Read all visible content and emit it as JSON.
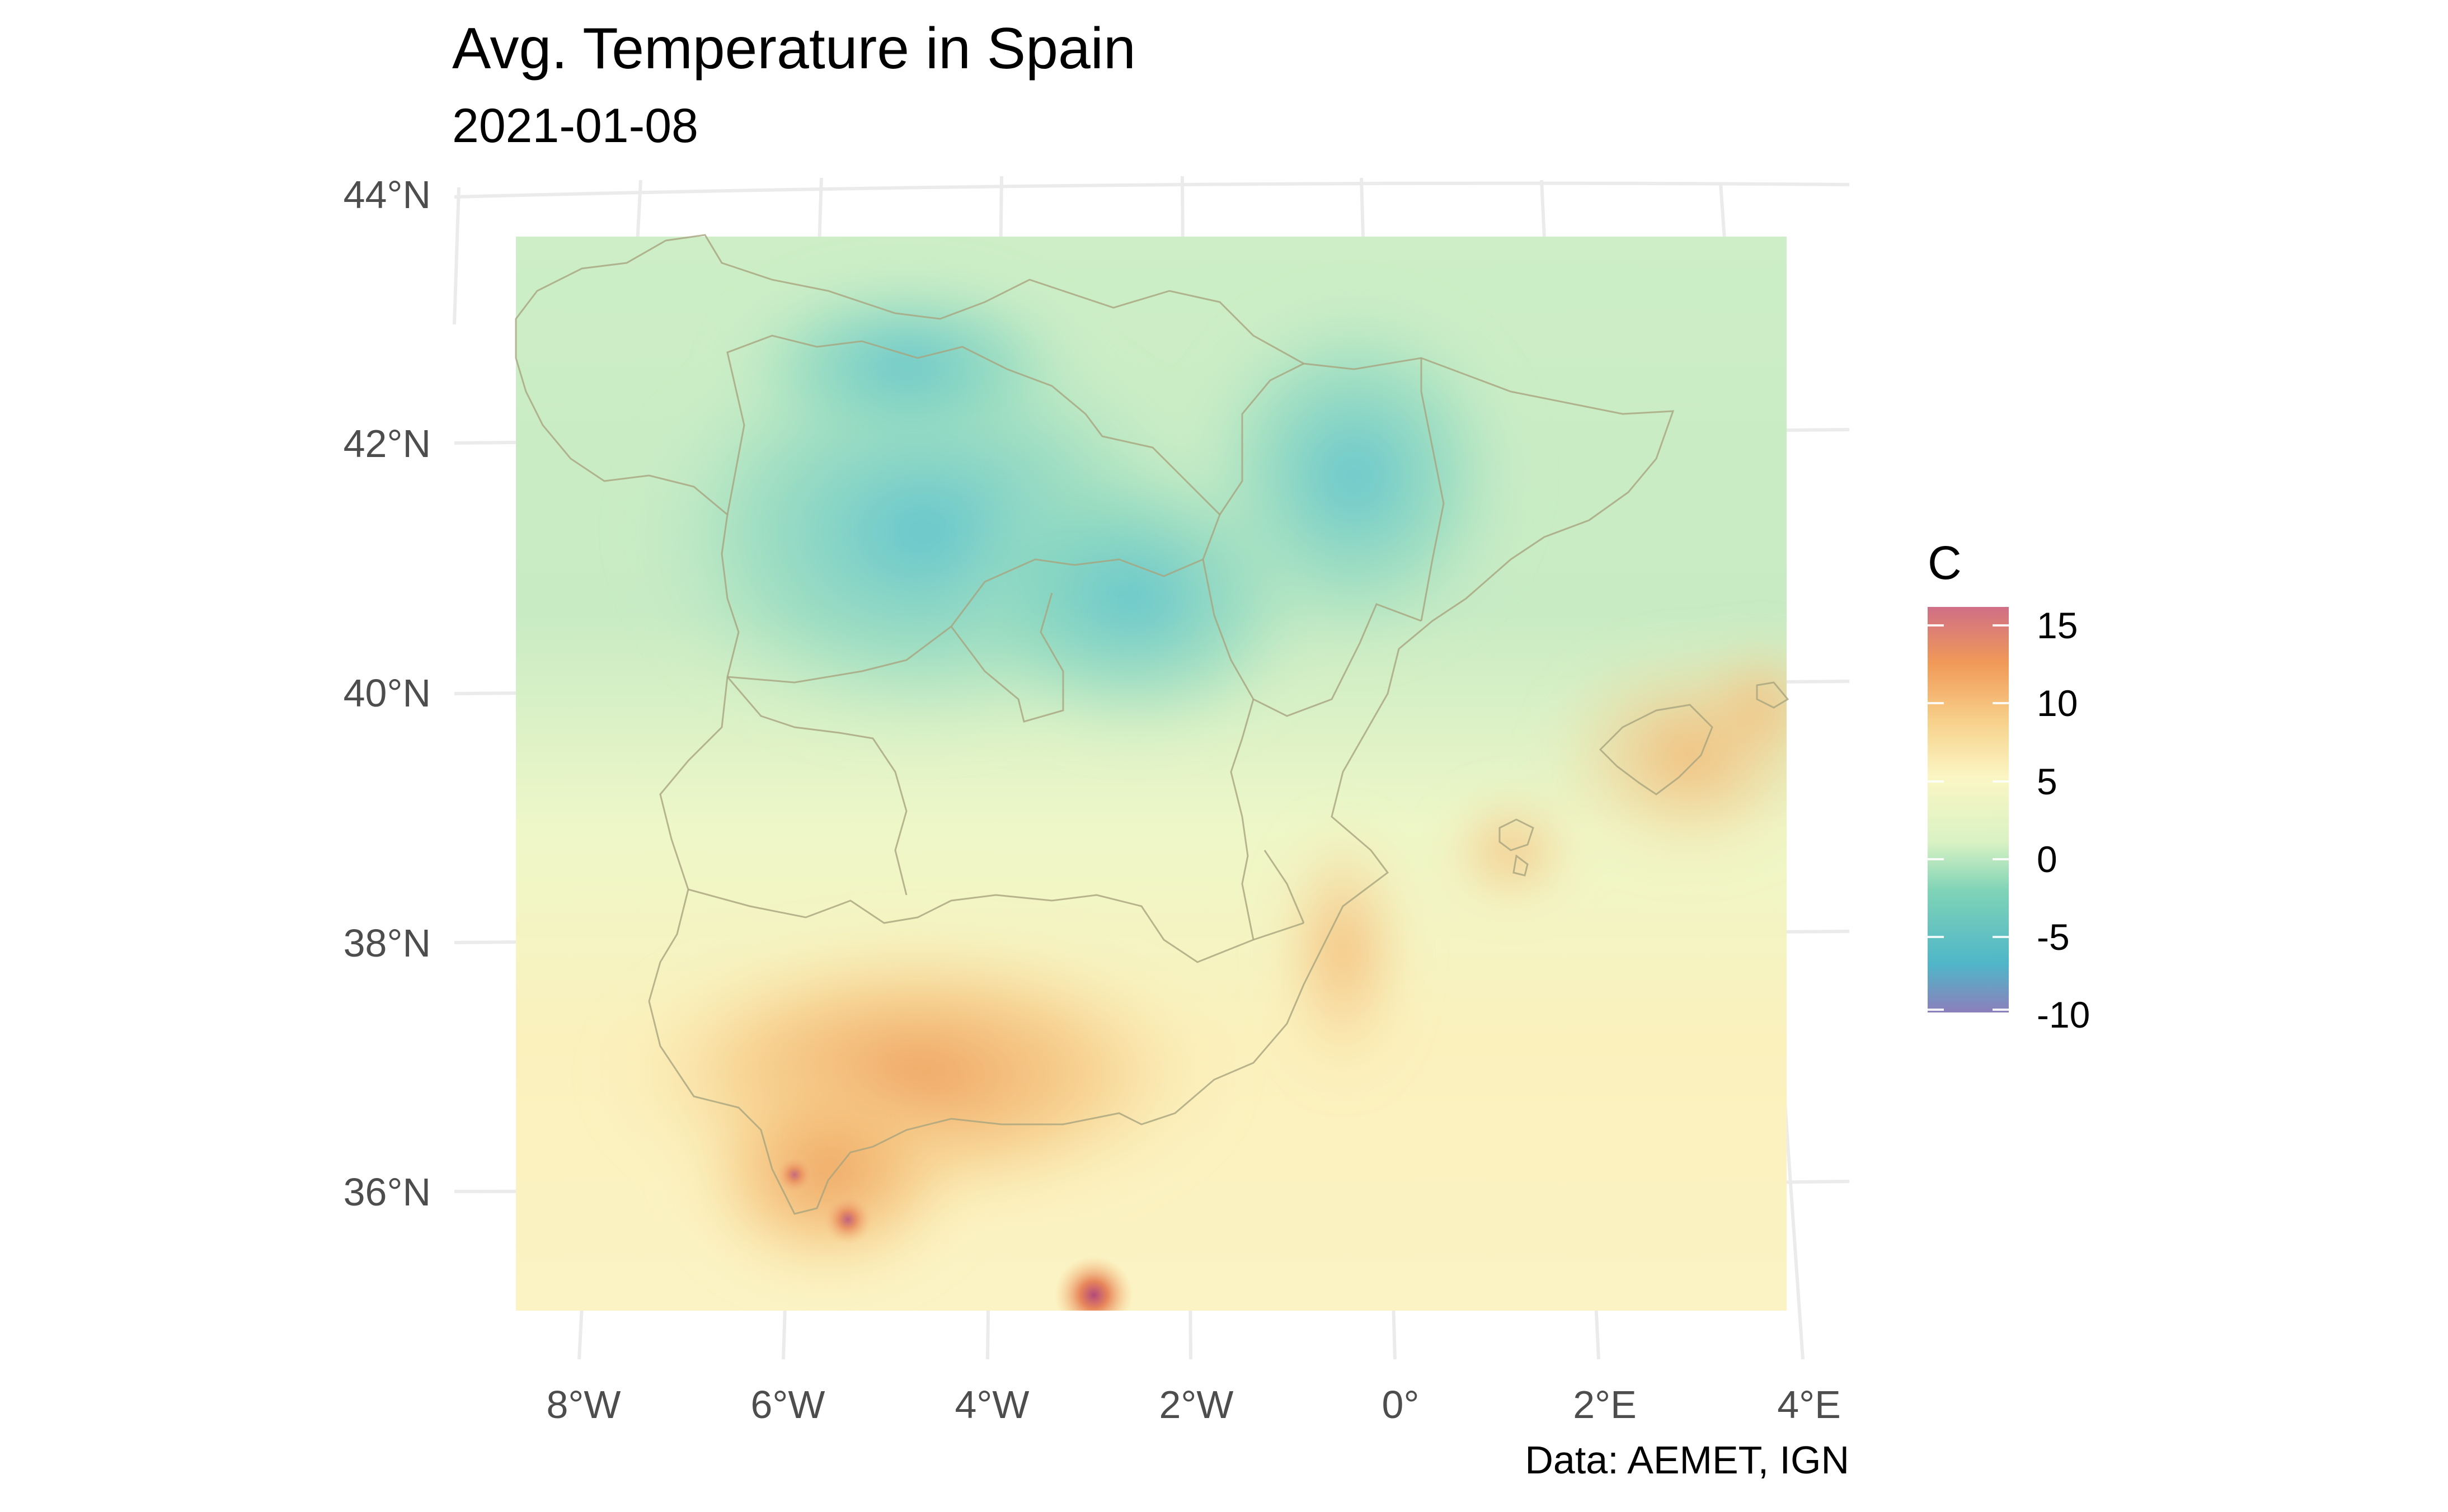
{
  "title": "Avg. Temperature in Spain",
  "subtitle": "2021-01-08",
  "caption": "Data: AEMET, IGN",
  "map": {
    "lat_labels": [
      "44°N",
      "42°N",
      "40°N",
      "38°N",
      "36°N"
    ],
    "lon_labels": [
      "8°W",
      "6°W",
      "4°W",
      "2°W",
      "0°",
      "2°E",
      "4°E"
    ],
    "grid": true,
    "regions": [
      "Iberian Peninsula",
      "Balearic Islands"
    ]
  },
  "legend": {
    "title": "C",
    "ticks": [
      "15",
      "10",
      "5",
      "0",
      "-5",
      "-10"
    ],
    "range": [
      -10,
      16
    ],
    "palette": [
      "#8c7fbb",
      "#4fb6c9",
      "#7fd3b6",
      "#d9f2c4",
      "#fbf6c4",
      "#f7d08a",
      "#f19a58",
      "#d06e86"
    ],
    "placement": "right"
  },
  "chart_data": {
    "type": "heatmap",
    "variable": "Avg. Temperature",
    "date": "2021-01-08",
    "unit": "C",
    "lat_ticks": [
      44,
      42,
      40,
      38,
      36
    ],
    "lon_ticks": [
      -8,
      -6,
      -4,
      -2,
      0,
      2,
      4
    ],
    "value_range": [
      -10,
      16
    ],
    "colorbar_ticks": [
      15,
      10,
      5,
      0,
      -5,
      -10
    ]
  }
}
